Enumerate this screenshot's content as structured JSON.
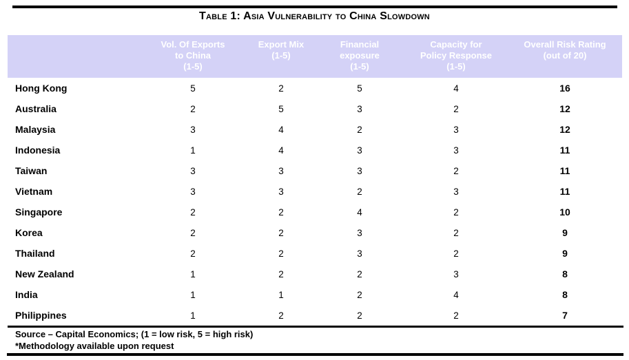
{
  "title": "Table 1: Asia Vulnerability to China Slowdown",
  "table": {
    "header": {
      "country": "",
      "vol": "Vol. Of Exports\nto China\n(1-5)",
      "mix": "Export Mix\n(1-5)",
      "fin": "Financial\nexposure\n(1-5)",
      "cap": "Capacity for\nPolicy Response\n(1-5)",
      "overall": "Overall Risk Rating\n(out of 20)"
    },
    "rows": [
      {
        "country": "Hong Kong",
        "vol": "5",
        "mix": "2",
        "fin": "5",
        "cap": "4",
        "overall": "16"
      },
      {
        "country": "Australia",
        "vol": "2",
        "mix": "5",
        "fin": "3",
        "cap": "2",
        "overall": "12"
      },
      {
        "country": "Malaysia",
        "vol": "3",
        "mix": "4",
        "fin": "2",
        "cap": "3",
        "overall": "12"
      },
      {
        "country": "Indonesia",
        "vol": "1",
        "mix": "4",
        "fin": "3",
        "cap": "3",
        "overall": "11"
      },
      {
        "country": "Taiwan",
        "vol": "3",
        "mix": "3",
        "fin": "3",
        "cap": "2",
        "overall": "11"
      },
      {
        "country": "Vietnam",
        "vol": "3",
        "mix": "3",
        "fin": "2",
        "cap": "3",
        "overall": "11"
      },
      {
        "country": "Singapore",
        "vol": "2",
        "mix": "2",
        "fin": "4",
        "cap": "2",
        "overall": "10"
      },
      {
        "country": "Korea",
        "vol": "2",
        "mix": "2",
        "fin": "3",
        "cap": "2",
        "overall": "9"
      },
      {
        "country": "Thailand",
        "vol": "2",
        "mix": "2",
        "fin": "3",
        "cap": "2",
        "overall": "9"
      },
      {
        "country": "New Zealand",
        "vol": "1",
        "mix": "2",
        "fin": "2",
        "cap": "3",
        "overall": "8"
      },
      {
        "country": "India",
        "vol": "1",
        "mix": "1",
        "fin": "2",
        "cap": "4",
        "overall": "8"
      },
      {
        "country": "Philippines",
        "vol": "1",
        "mix": "2",
        "fin": "2",
        "cap": "2",
        "overall": "7"
      }
    ]
  },
  "footer": {
    "source": "Source – Capital Economics; (1 = low risk, 5 = high risk)",
    "note": "*Methodology available upon request"
  },
  "colors": {
    "header_bg": "#d4d2f7",
    "header_text": "#ffffff"
  }
}
